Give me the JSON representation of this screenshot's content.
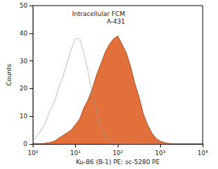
{
  "chart_data": {
    "type": "line",
    "title": "Intracellular FCM",
    "subtitle": "A-431",
    "x_label": "Ku-86 (B-1) PE: sc-5280 PE",
    "y_label": "Counts",
    "log": "x",
    "grid": false,
    "xlim": [
      1,
      10000
    ],
    "xticks": [
      {
        "value": 1,
        "label": "10⁰"
      },
      {
        "value": 10,
        "label": "10¹"
      },
      {
        "value": 100,
        "label": "10²"
      },
      {
        "value": 1000,
        "label": "10³"
      },
      {
        "value": 10000,
        "label": "10⁴"
      }
    ],
    "ylim": [
      0,
      50
    ],
    "yticks": [
      0,
      10,
      20,
      30,
      40,
      50
    ],
    "x": [
      1,
      1.26,
      1.58,
      2,
      2.51,
      3.16,
      3.98,
      5.01,
      6.31,
      7.94,
      10,
      12.6,
      15.8,
      20,
      25.1,
      31.6,
      39.8,
      50.1,
      63.1,
      79.4,
      100,
      126,
      158,
      200,
      251,
      316,
      398,
      501,
      631,
      794,
      1000,
      1260,
      1580,
      2000
    ],
    "series": [
      {
        "type": "line",
        "color": "#999999",
        "line_style": "dotted",
        "values": [
          1,
          3,
          5,
          8,
          12,
          15,
          20,
          24,
          29,
          34,
          38,
          38,
          33,
          26,
          18,
          12,
          6,
          3,
          1,
          0.3,
          0,
          0,
          0,
          0,
          0,
          0,
          0,
          0,
          0,
          0,
          0,
          0,
          0,
          0
        ]
      },
      {
        "type": "area",
        "color": "#e2703a",
        "line_style": "solid",
        "values": [
          0,
          0,
          0,
          0.3,
          0.5,
          1,
          2,
          3,
          4,
          5,
          7,
          9,
          13,
          16,
          20,
          25,
          29,
          33,
          36,
          38,
          39,
          36,
          33,
          28,
          22,
          17,
          11,
          7,
          4,
          2,
          1,
          0.5,
          0.2,
          0
        ]
      }
    ]
  }
}
